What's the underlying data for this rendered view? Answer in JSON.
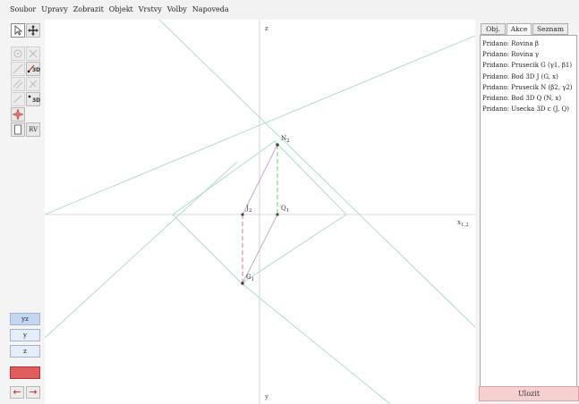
{
  "menu": [
    "Soubor",
    "Upravy",
    "Zobrazit",
    "Objekt",
    "Vrstvy",
    "Volby",
    "Napoveda"
  ],
  "toolbar": {
    "badge_3d": "3D",
    "rv_label": "RV",
    "views": [
      "yz",
      "y",
      "z"
    ],
    "color_accent": "#e05d5d",
    "arrow_left": "←",
    "arrow_right": "→"
  },
  "canvas": {
    "axis_z": "z",
    "axis_y": "y",
    "axis_x12": "x",
    "axis_x12_sub": "1,2",
    "labels": {
      "N2": "N",
      "N2_sub": "2",
      "J2": "J",
      "J2_sub": "2",
      "Q1": "Q",
      "Q1_sub": "1",
      "G1": "G",
      "G1_sub": "1"
    }
  },
  "panel": {
    "tabs": [
      "Obj.",
      "Akce",
      "Seznam"
    ],
    "active_tab": "Akce",
    "log": [
      "Pridano: Rovina β",
      "Pridano: Rovina γ",
      "Pridano: Prusecik G (γ1, β1)",
      "Pridano: Bod 3D J (G, x)",
      "Pridano: Prusecik N (β2, γ2)",
      "Pridano: Bod 3D Q (N, x)",
      "Pridano: Usecka 3D c (J, Q)"
    ],
    "save_label": "Ulozit"
  }
}
